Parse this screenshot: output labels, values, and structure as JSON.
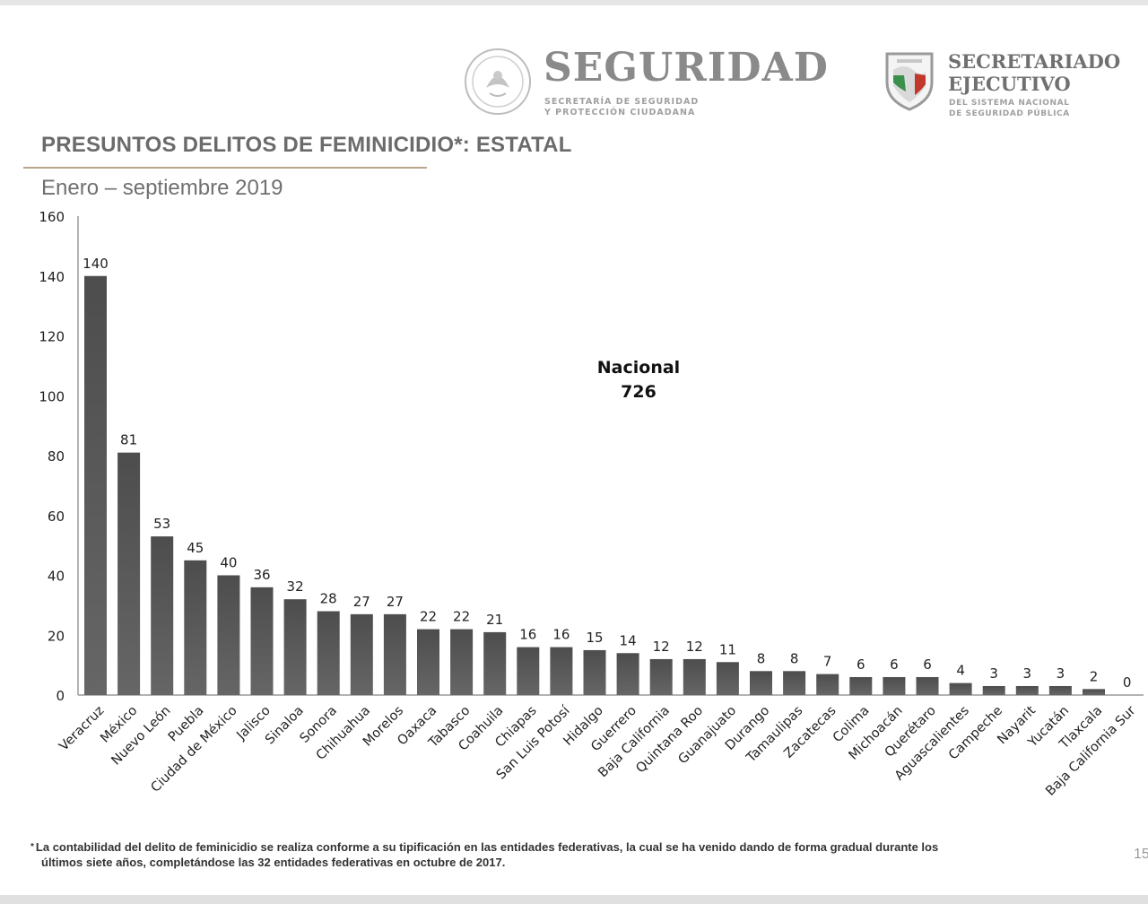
{
  "header": {
    "brand_seguridad": "SEGURIDAD",
    "brand_seguridad_sub1": "SECRETARÍA DE SEGURIDAD",
    "brand_seguridad_sub2": "Y PROTECCIÓN CIUDADANA",
    "brand_secretariado1": "SECRETARIADO",
    "brand_secretariado2": "EJECUTIVO",
    "brand_secretariado_sub1": "DEL SISTEMA NACIONAL",
    "brand_secretariado_sub2": "DE SEGURIDAD PÚBLICA"
  },
  "icons": {
    "seal": "national-seal-icon",
    "shield": "sesnsp-shield-icon"
  },
  "colors": {
    "bar": "#4d4d4d",
    "title_rule": "#b8a58c",
    "brand_gray": "#8a8a8a"
  },
  "chart_data": {
    "type": "bar",
    "title": "PRESUNTOS DELITOS DE FEMINICIDIO*: ESTATAL",
    "subtitle": "Enero – septiembre 2019",
    "annotation": {
      "label": "Nacional",
      "value": "726"
    },
    "ylim": [
      0,
      160
    ],
    "yticks": [
      0,
      20,
      40,
      60,
      80,
      100,
      120,
      140,
      160
    ],
    "categories": [
      "Veracruz",
      "México",
      "Nuevo León",
      "Puebla",
      "Ciudad de México",
      "Jalisco",
      "Sinaloa",
      "Sonora",
      "Chihuahua",
      "Morelos",
      "Oaxaca",
      "Tabasco",
      "Coahuila",
      "Chiapas",
      "San Luis Potosí",
      "Hidalgo",
      "Guerrero",
      "Baja California",
      "Quintana Roo",
      "Guanajuato",
      "Durango",
      "Tamaulipas",
      "Zacatecas",
      "Colima",
      "Michoacán",
      "Querétaro",
      "Aguascalientes",
      "Campeche",
      "Nayarit",
      "Yucatán",
      "Tlaxcala",
      "Baja California Sur"
    ],
    "values": [
      140,
      81,
      53,
      45,
      40,
      36,
      32,
      28,
      27,
      27,
      22,
      22,
      21,
      16,
      16,
      15,
      14,
      12,
      12,
      11,
      8,
      8,
      7,
      6,
      6,
      6,
      4,
      3,
      3,
      3,
      2,
      0
    ],
    "grid": false,
    "legend": "none"
  },
  "footnote": {
    "marker": "*",
    "line1": "La contabilidad del delito de feminicidio se realiza conforme a su tipificación en las entidades federativas, la cual se ha venido dando de forma gradual durante los",
    "line2": "últimos siete años, completándose las 32 entidades federativas en octubre de 2017."
  },
  "page_number": "15"
}
